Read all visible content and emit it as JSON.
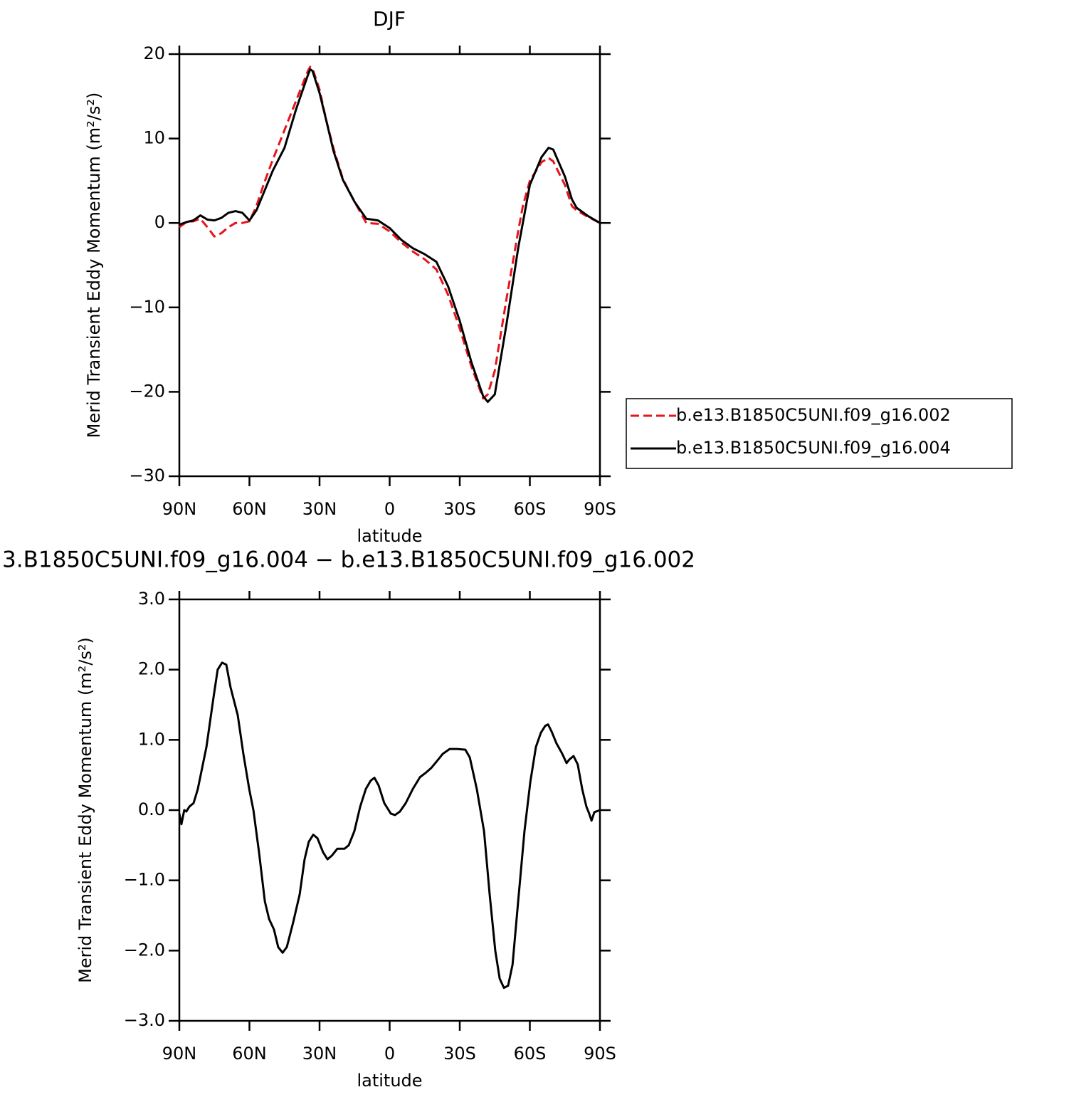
{
  "chart_data": [
    {
      "type": "line",
      "title": "DJF",
      "x_label": "latitude",
      "y_label": "Merid Transient Eddy Momentum (m²/s²)",
      "x": [
        90,
        87,
        84,
        81,
        78,
        75,
        72,
        69,
        66,
        63,
        60,
        57,
        54,
        50,
        45,
        40,
        35,
        34,
        33,
        30,
        27,
        24,
        20,
        15,
        10,
        5,
        0,
        -5,
        -10,
        -15,
        -20,
        -25,
        -30,
        -35,
        -40,
        -42,
        -45,
        -50,
        -55,
        -57,
        -60,
        -65,
        -68,
        -70,
        -75,
        -78,
        -80,
        -85,
        -90
      ],
      "series": [
        {
          "name": "b.e13.B1850C5UNI.f09_g16.002",
          "color": "#e8141b",
          "dashed": true,
          "values": [
            -0.5,
            0.1,
            0.2,
            0.5,
            -0.5,
            -1.6,
            -1.2,
            -0.5,
            0,
            0,
            0.2,
            2,
            4.5,
            7.5,
            11,
            14.5,
            18,
            18.5,
            18.3,
            15.8,
            12,
            8.8,
            5.2,
            2.5,
            0,
            -0.1,
            -1,
            -2.3,
            -3.4,
            -4.3,
            -5.5,
            -8.5,
            -12.5,
            -17,
            -20.8,
            -20.3,
            -17.5,
            -9,
            -1,
            2,
            5,
            7.2,
            7.7,
            7.3,
            4.5,
            2,
            1.5,
            0.7,
            0
          ]
        },
        {
          "name": "b.e13.B1850C5UNI.f09_g16.004",
          "color": "#000000",
          "dashed": false,
          "values": [
            -0.2,
            0.1,
            0.3,
            0.9,
            0.4,
            0.3,
            0.6,
            1.2,
            1.4,
            1.2,
            0.3,
            1.5,
            3.5,
            6.2,
            8.9,
            13.5,
            17.5,
            18.2,
            18,
            15.4,
            12,
            8.5,
            5.1,
            2.5,
            0.5,
            0.3,
            -0.6,
            -2,
            -3,
            -3.7,
            -4.6,
            -7.5,
            -11.6,
            -16.5,
            -20.5,
            -21.2,
            -20.3,
            -12,
            -3,
            0,
            4.5,
            7.8,
            8.9,
            8.7,
            5.5,
            2.8,
            1.8,
            0.8,
            0
          ]
        }
      ],
      "xlim": [
        90,
        -90
      ],
      "xticks": [
        {
          "value": 90,
          "label": "90N"
        },
        {
          "value": 60,
          "label": "60N"
        },
        {
          "value": 30,
          "label": "30N"
        },
        0,
        {
          "value": -30,
          "label": "30S"
        },
        {
          "value": -60,
          "label": "60S"
        },
        {
          "value": -90,
          "label": "90S"
        }
      ],
      "ylim": [
        -30,
        20
      ],
      "yticks": [
        20,
        10,
        0,
        {
          "value": -10,
          "label": "−10"
        },
        {
          "value": -20,
          "label": "−20"
        },
        {
          "value": -30,
          "label": "−30"
        }
      ]
    },
    {
      "type": "line",
      "title": "3.B1850C5UNI.f09_g16.004 − b.e13.B1850C5UNI.f09_g16.002",
      "x_label": "latitude",
      "y_label": "Merid Transient Eddy Momentum (m²/s²)",
      "x": [
        90,
        89.1,
        87.9,
        87,
        85.7,
        83.9,
        82.1,
        78.4,
        75.4,
        73.6,
        71.7,
        69.9,
        68.1,
        65,
        62.6,
        60.1,
        58.3,
        55.9,
        53.4,
        51.6,
        49.5,
        47.7,
        45.8,
        44,
        41.3,
        38.5,
        36.4,
        34.6,
        32.7,
        30.9,
        28.5,
        26.6,
        24.8,
        22.4,
        19.3,
        17.5,
        15.1,
        12.6,
        10.2,
        8.1,
        6.5,
        4.7,
        2.3,
        -0.5,
        -2.3,
        -4.4,
        -6.9,
        -9.9,
        -13,
        -15.4,
        -17.8,
        -20.3,
        -22.7,
        -25.7,
        -28.8,
        -32.4,
        -34.3,
        -37.3,
        -40.4,
        -42.8,
        -45.2,
        -47.1,
        -48.9,
        -50.7,
        -52.6,
        -55,
        -57.7,
        -60.2,
        -62.6,
        -64.7,
        -66.6,
        -67.8,
        -69.3,
        -71.4,
        -73.9,
        -75.7,
        -76.9,
        -78.7,
        -80.5,
        -82.4,
        -84.2,
        -85.4,
        -86.4,
        -87.6,
        -90
      ],
      "series": [
        {
          "color": "#000000",
          "dashed": false,
          "values": [
            -0.05,
            -0.2,
            0,
            -0.02,
            0.05,
            0.1,
            0.3,
            0.9,
            1.6,
            2,
            2.1,
            2.07,
            1.75,
            1.35,
            0.8,
            0.3,
            0,
            -0.6,
            -1.3,
            -1.55,
            -1.7,
            -1.95,
            -2.03,
            -1.95,
            -1.6,
            -1.2,
            -0.7,
            -0.45,
            -0.35,
            -0.4,
            -0.6,
            -0.7,
            -0.65,
            -0.55,
            -0.55,
            -0.5,
            -0.3,
            0.05,
            0.3,
            0.42,
            0.46,
            0.35,
            0.1,
            -0.05,
            -0.07,
            -0.02,
            0.1,
            0.3,
            0.47,
            0.53,
            0.6,
            0.7,
            0.8,
            0.87,
            0.87,
            0.86,
            0.75,
            0.3,
            -0.3,
            -1.2,
            -2,
            -2.4,
            -2.53,
            -2.5,
            -2.2,
            -1.3,
            -0.3,
            0.4,
            0.9,
            1.1,
            1.2,
            1.22,
            1.12,
            0.95,
            0.8,
            0.67,
            0.72,
            0.77,
            0.65,
            0.3,
            0.05,
            -0.05,
            -0.15,
            -0.03,
            0
          ]
        }
      ],
      "xlim": [
        90,
        -90
      ],
      "xticks": [
        {
          "value": 90,
          "label": "90N"
        },
        {
          "value": 60,
          "label": "60N"
        },
        {
          "value": 30,
          "label": "30N"
        },
        0,
        {
          "value": -30,
          "label": "30S"
        },
        {
          "value": -60,
          "label": "60S"
        },
        {
          "value": -90,
          "label": "90S"
        }
      ],
      "ylim": [
        -3,
        3
      ],
      "yticks": [
        {
          "value": 3,
          "label": "3.0"
        },
        {
          "value": 2,
          "label": "2.0"
        },
        {
          "value": 1,
          "label": "1.0"
        },
        {
          "value": 0,
          "label": "0.0"
        },
        {
          "value": -1,
          "label": "−1.0"
        },
        {
          "value": -2,
          "label": "−2.0"
        },
        {
          "value": -3,
          "label": "−3.0"
        }
      ]
    }
  ]
}
